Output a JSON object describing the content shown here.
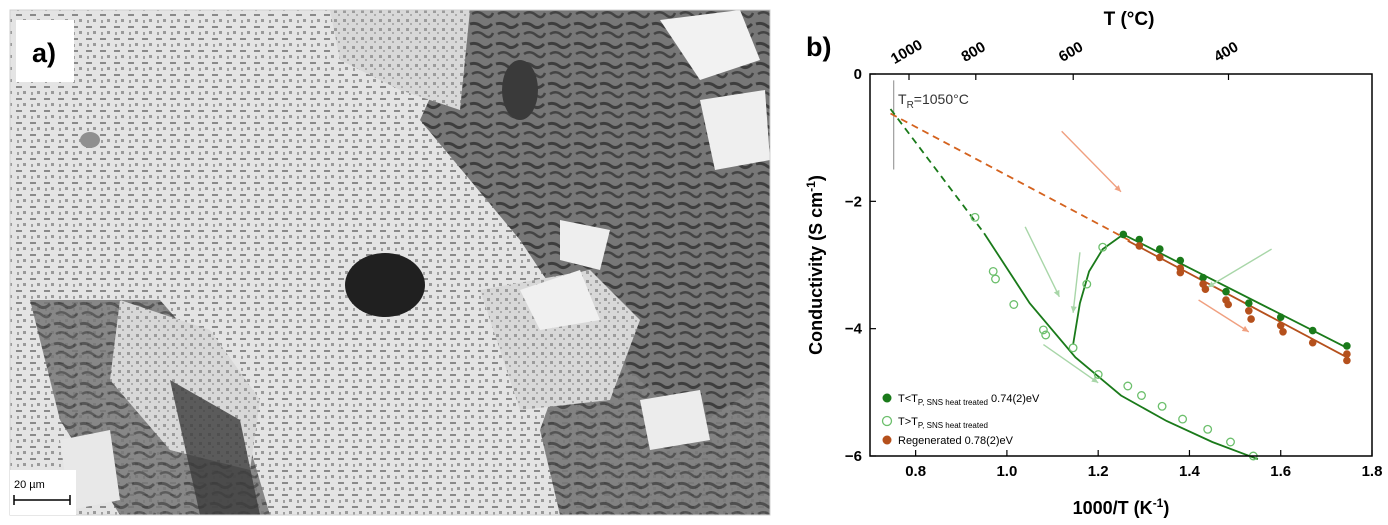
{
  "panel_a": {
    "label": "a)",
    "scalebar": "20 µm"
  },
  "chart_data": {
    "type": "scatter",
    "panel_label": "b)",
    "title": "",
    "xlabel": "1000/T (K",
    "xlabel_sup": "-1",
    "xlabel_suffix": ")",
    "ylabel": "Conductivity (S cm",
    "ylabel_sup": "-1",
    "ylabel_suffix": ")",
    "xlim": [
      0.7,
      1.8
    ],
    "ylim": [
      -6,
      0
    ],
    "x_ticks": [
      0.8,
      1.0,
      1.2,
      1.4,
      1.6,
      1.8
    ],
    "x_tick_labels": [
      "0.8",
      "1.0",
      "1.2",
      "1.4",
      "1.6",
      "1.8"
    ],
    "y_ticks": [
      0,
      -2,
      -4,
      -6
    ],
    "y_tick_labels": [
      "0",
      "−2",
      "−4",
      "−6"
    ],
    "top_axis": {
      "label": "T (°C)",
      "ticks": [
        1000,
        800,
        600,
        400
      ],
      "tick_labels": [
        "1000",
        "800",
        "600",
        "400"
      ]
    },
    "annotation": {
      "text_main": "T",
      "text_sub": "R",
      "text_rest": "=1050°C",
      "x": 0.752
    },
    "legend": {
      "position": "bottom-left",
      "entries": [
        {
          "main": "T<T",
          "sub": "P, SNS heat treated",
          "rest": " 0.74(2)eV",
          "marker": "filled",
          "color": "#1a7a1a"
        },
        {
          "main": "T>T",
          "sub": "P, SNS heat treated",
          "rest": "",
          "marker": "open",
          "color": "#6cbf6c"
        },
        {
          "main": "Regenerated 0.78(2)eV",
          "sub": "",
          "rest": "",
          "marker": "filled",
          "color": "#b5501c"
        }
      ]
    },
    "series": [
      {
        "name": "T<T P, SNS heat treated 0.74(2)eV",
        "marker": "filled",
        "color": "#1a7a1a",
        "x": [
          1.255,
          1.29,
          1.335,
          1.38,
          1.43,
          1.48,
          1.53,
          1.6,
          1.67,
          1.745
        ],
        "y": [
          -2.52,
          -2.6,
          -2.75,
          -2.93,
          -3.2,
          -3.42,
          -3.6,
          -3.82,
          -4.03,
          -4.27
        ]
      },
      {
        "name": "T>T P, SNS heat treated",
        "marker": "open",
        "color": "#6cbf6c",
        "x": [
          0.93,
          0.97,
          0.975,
          1.015,
          1.08,
          1.085,
          1.145,
          1.175,
          1.21,
          1.2,
          1.265,
          1.295,
          1.34,
          1.385,
          1.44,
          1.49,
          1.54
        ],
        "y": [
          -2.25,
          -3.1,
          -3.22,
          -3.62,
          -4.02,
          -4.1,
          -4.3,
          -3.3,
          -2.72,
          -4.72,
          -4.9,
          -5.05,
          -5.22,
          -5.42,
          -5.58,
          -5.78,
          -6.0
        ]
      },
      {
        "name": "Regenerated 0.78(2)eV",
        "marker": "filled",
        "color": "#b5501c",
        "x": [
          1.29,
          1.335,
          1.38,
          1.38,
          1.43,
          1.435,
          1.48,
          1.485,
          1.53,
          1.535,
          1.6,
          1.605,
          1.67,
          1.745,
          1.745
        ],
        "y": [
          -2.7,
          -2.88,
          -3.05,
          -3.12,
          -3.3,
          -3.38,
          -3.55,
          -3.62,
          -3.72,
          -3.85,
          -3.95,
          -4.05,
          -4.22,
          -4.4,
          -4.5
        ]
      }
    ],
    "fit_lines": [
      {
        "color": "#1a7a1a",
        "style": "solid",
        "x": [
          1.255,
          1.745
        ],
        "y": [
          -2.52,
          -4.3
        ]
      },
      {
        "color": "#b5501c",
        "style": "solid",
        "x": [
          1.265,
          1.745
        ],
        "y": [
          -2.62,
          -4.45
        ]
      },
      {
        "color": "#d4621e",
        "style": "dashed",
        "x": [
          0.745,
          1.27
        ],
        "y": [
          -0.62,
          -2.62
        ]
      },
      {
        "color": "#1a7a1a",
        "style": "dashed",
        "x": [
          0.745,
          0.95
        ],
        "y": [
          -0.55,
          -2.5
        ]
      },
      {
        "color": "#1a7a1a",
        "style": "solid",
        "x": [
          0.95,
          1.05,
          1.15,
          1.25,
          1.35,
          1.45,
          1.55
        ],
        "y": [
          -2.5,
          -3.6,
          -4.45,
          -5.05,
          -5.45,
          -5.78,
          -6.05
        ]
      },
      {
        "color": "#1a7a1a",
        "style": "solid",
        "x": [
          1.145,
          1.16,
          1.18,
          1.21,
          1.255
        ],
        "y": [
          -4.25,
          -3.6,
          -3.1,
          -2.75,
          -2.52
        ]
      }
    ],
    "arrows": [
      {
        "color": "#f0a080",
        "x": [
          1.12,
          1.25
        ],
        "y": [
          -0.9,
          -1.85
        ]
      },
      {
        "color": "#f0a080",
        "x": [
          1.42,
          1.53
        ],
        "y": [
          -3.55,
          -4.05
        ]
      },
      {
        "color": "#a8d6a8",
        "x": [
          1.58,
          1.44
        ],
        "y": [
          -2.75,
          -3.35
        ]
      },
      {
        "color": "#a8d6a8",
        "x": [
          1.04,
          1.115
        ],
        "y": [
          -2.4,
          -3.5
        ]
      },
      {
        "color": "#a8d6a8",
        "x": [
          1.16,
          1.145
        ],
        "y": [
          -2.8,
          -3.75
        ]
      },
      {
        "color": "#a8d6a8",
        "x": [
          1.08,
          1.2
        ],
        "y": [
          -4.25,
          -4.85
        ]
      }
    ]
  }
}
